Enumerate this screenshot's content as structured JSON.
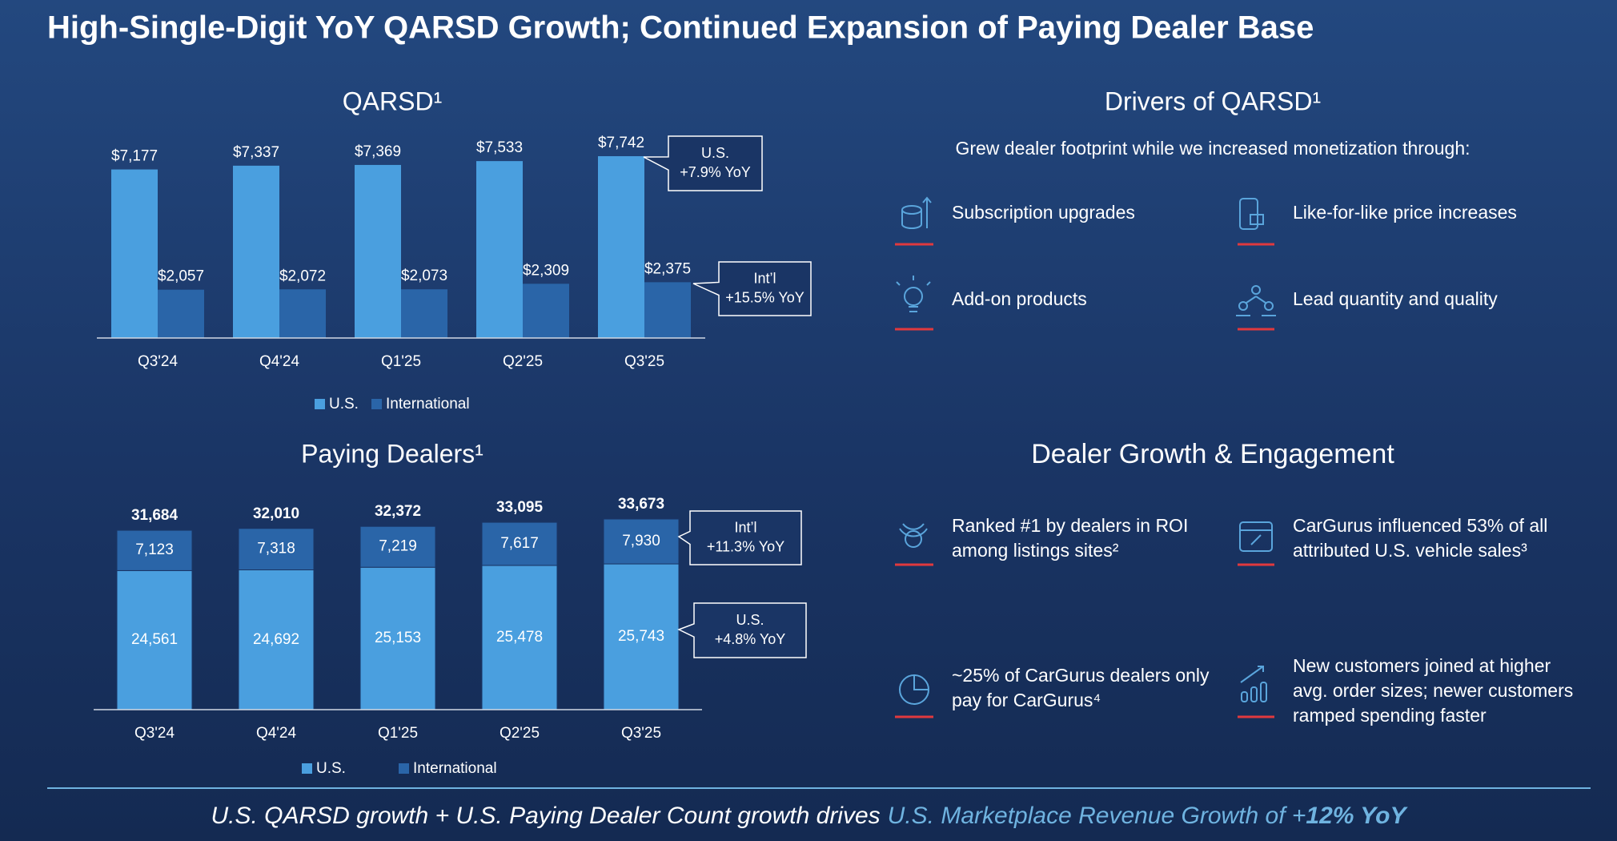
{
  "title": "High-Single-Digit YoY QARSD Growth; Continued Expansion of Paying Dealer Base",
  "chart_data": [
    {
      "type": "bar",
      "title": "QARSD¹",
      "categories": [
        "Q3'24",
        "Q4'24",
        "Q1'25",
        "Q2'25",
        "Q3'25"
      ],
      "series": [
        {
          "name": "U.S.",
          "color": "#4a9fdf",
          "values": [
            7177,
            7337,
            7369,
            7533,
            7742
          ],
          "value_labels": [
            "$7,177",
            "$7,337",
            "$7,369",
            "$7,533",
            "$7,742"
          ]
        },
        {
          "name": "International",
          "color": "#2a65a8",
          "values": [
            2057,
            2072,
            2073,
            2309,
            2375
          ],
          "value_labels": [
            "$2,057",
            "$2,072",
            "$2,073",
            "$2,309",
            "$2,375"
          ]
        }
      ],
      "annotations": [
        {
          "lines": [
            "U.S.",
            "+7.9% YoY"
          ]
        },
        {
          "lines": [
            "Int’l",
            "+15.5% YoY"
          ]
        }
      ]
    },
    {
      "type": "stacked_bar",
      "title": "Paying Dealers¹",
      "categories": [
        "Q3'24",
        "Q4'24",
        "Q1'25",
        "Q2'25",
        "Q3'25"
      ],
      "series": [
        {
          "name": "U.S.",
          "color": "#4a9fdf",
          "values": [
            24561,
            24692,
            25153,
            25478,
            25743
          ],
          "value_labels": [
            "24,561",
            "24,692",
            "25,153",
            "25,478",
            "25,743"
          ]
        },
        {
          "name": "International",
          "color": "#2a65a8",
          "values": [
            7123,
            7318,
            7219,
            7617,
            7930
          ],
          "value_labels": [
            "7,123",
            "7,318",
            "7,219",
            "7,617",
            "7,930"
          ]
        }
      ],
      "totals": [
        31684,
        32010,
        32372,
        33095,
        33673
      ],
      "total_labels": [
        "31,684",
        "32,010",
        "32,372",
        "33,095",
        "33,673"
      ],
      "annotations": [
        {
          "lines": [
            "Int’l",
            "+11.3% YoY"
          ]
        },
        {
          "lines": [
            "U.S.",
            "+4.8% YoY"
          ]
        }
      ]
    }
  ],
  "drivers": {
    "title": "Drivers of QARSD¹",
    "subtitle": "Grew dealer footprint while we increased monetization through:",
    "items": [
      "Subscription upgrades",
      "Like-for-like price increases",
      "Add-on products",
      "Lead quantity and quality"
    ]
  },
  "engagement": {
    "title": "Dealer Growth & Engagement",
    "items": [
      {
        "lines": [
          "Ranked #1 by dealers in ROI",
          "among listings sites²"
        ]
      },
      {
        "lines": [
          "CarGurus influenced 53% of all",
          "attributed U.S. vehicle sales³"
        ]
      },
      {
        "lines": [
          "~25% of CarGurus dealers only",
          "pay for CarGurus⁴"
        ]
      },
      {
        "lines": [
          "New customers joined at higher",
          "avg. order sizes; newer customers",
          "ramped spending faster"
        ]
      }
    ]
  },
  "footer": {
    "parts": [
      "U.S. QARSD growth + U.S. Paying Dealer Count growth drives",
      "U.S. Marketplace Revenue Growth of +",
      "12% YoY"
    ]
  }
}
